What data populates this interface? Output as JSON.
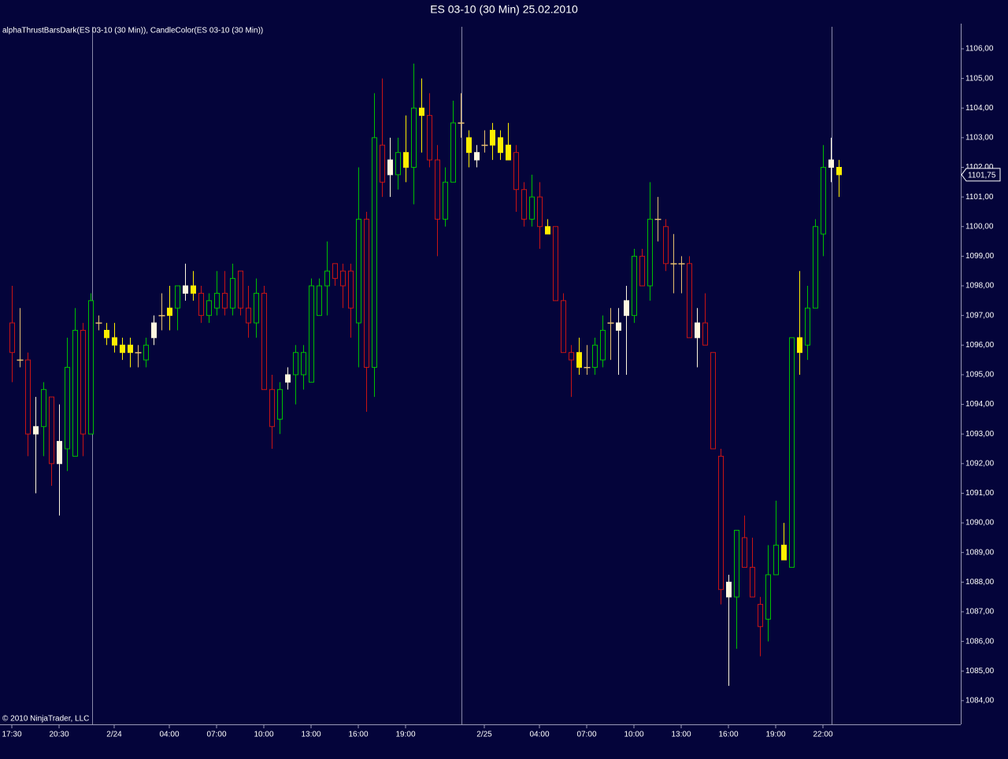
{
  "chart_data": {
    "type": "candlestick",
    "title": "ES 03-10 (30 Min)  25.02.2010",
    "indicator_label": "alphaThrustBarsDark(ES 03-10 (30 Min)), CandleColor(ES 03-10 (30 Min))",
    "copyright": "© 2010 NinjaTrader, LLC",
    "categories": [
      "17:30",
      null,
      null,
      null,
      null,
      null,
      "20:30",
      null,
      null,
      null,
      null,
      null,
      null,
      "2/24",
      null,
      null,
      null,
      null,
      null,
      null,
      "04:00",
      null,
      null,
      null,
      null,
      null,
      "07:00",
      null,
      null,
      null,
      null,
      null,
      "10:00",
      null,
      null,
      null,
      null,
      null,
      "13:00",
      null,
      null,
      null,
      null,
      null,
      "16:00",
      null,
      null,
      null,
      null,
      null,
      "19:00",
      null,
      null,
      null,
      null,
      null,
      null,
      null,
      null,
      null,
      "2/25",
      null,
      null,
      null,
      null,
      null,
      null,
      "04:00",
      null,
      null,
      null,
      null,
      null,
      "07:00",
      null,
      null,
      null,
      null,
      null,
      "10:00",
      null,
      null,
      null,
      null,
      null,
      "13:00",
      null,
      null,
      null,
      null,
      null,
      "16:00",
      null,
      null,
      null,
      null,
      null,
      "19:00",
      null,
      null,
      null,
      null,
      null,
      "22:00",
      null,
      null
    ],
    "open": [
      1096.75,
      1095.5,
      1095.5,
      1093,
      1093.25,
      1094.25,
      1092,
      1092.5,
      1092.25,
      1096.5,
      1093,
      1096.75,
      1096.5,
      1096.25,
      1096,
      1095.75,
      1095.75,
      1095.5,
      1096.25,
      1097,
      1097,
      1097.25,
      1098,
      1097.75,
      1097.75,
      1097,
      1097.25,
      1097.75,
      1097.25,
      1098.5,
      1097.25,
      1096.75,
      1097.75,
      1094.5,
      1093.5,
      1094.75,
      1095,
      1095,
      1094.75,
      1097,
      1098,
      1098.75,
      1098.5,
      1098.5,
      1096.75,
      1100.25,
      1095.25,
      1102.75,
      1101.75,
      1101.75,
      1102.5,
      1102,
      1104,
      1103.75,
      1102.25,
      1100.25,
      1101.5,
      1103.5,
      1103,
      1102.25,
      1102.75,
      1102.75,
      1103,
      1102.75,
      1102.5,
      1101.25,
      1100.25,
      1101,
      1100,
      1100,
      1097.5,
      1095.75,
      1095.75,
      1095.25,
      1095.25,
      1095.5,
      1096.75,
      1096.5,
      1097,
      1097,
      1099,
      1098,
      1100.25,
      1100,
      1098.75,
      1098.75,
      1098.75,
      1096.25,
      1096.75,
      1095.75,
      1092.25,
      1087.5,
      1087.5,
      1089.5,
      1088.5,
      1087.25,
      1086.75,
      1088.25,
      1089.25,
      1088.5,
      1096.25,
      1096,
      1097.25,
      1099.75,
      1102,
      1102
    ],
    "high": [
      1098,
      1097.25,
      1095.75,
      1094.25,
      1094.75,
      1094.25,
      1094,
      1096.25,
      1097.25,
      1096.75,
      1097.75,
      1097,
      1096.75,
      1096.75,
      1096.25,
      1096.25,
      1096,
      1096.25,
      1097,
      1097.75,
      1098,
      1098,
      1098.75,
      1098.5,
      1098,
      1097.75,
      1098.5,
      1098.5,
      1098.75,
      1098.5,
      1098,
      1098.25,
      1098,
      1095,
      1094.75,
      1095.25,
      1096,
      1096,
      1098.25,
      1098.25,
      1099.5,
      1098.75,
      1098.75,
      1098.75,
      1102,
      1100.5,
      1104.5,
      1105,
      1103,
      1103,
      1103.75,
      1105.5,
      1105,
      1104.5,
      1102.75,
      1102,
      1104.25,
      1104.5,
      1103.25,
      1102.75,
      1103.25,
      1103.5,
      1103.25,
      1103.5,
      1102.75,
      1101.5,
      1101.75,
      1101.5,
      1100.25,
      1100,
      1097.75,
      1096,
      1096.25,
      1096,
      1096.25,
      1097,
      1097.25,
      1097.25,
      1098,
      1099.25,
      1099.25,
      1101.5,
      1101,
      1100.25,
      1099.75,
      1099,
      1099,
      1097.25,
      1097.75,
      1095.75,
      1092.5,
      1088.25,
      1089.75,
      1090.25,
      1089.5,
      1087.5,
      1089.25,
      1090.75,
      1090,
      1096.25,
      1098.5,
      1098,
      1100.25,
      1102.75,
      1103,
      1102.25
    ],
    "low": [
      1094.75,
      1095.25,
      1092.25,
      1091,
      1092.25,
      1091.25,
      1090.25,
      1091.75,
      1092.25,
      1092.25,
      1093,
      1096.5,
      1096,
      1095.75,
      1095.5,
      1095.25,
      1095.25,
      1095.25,
      1096,
      1096.5,
      1096.5,
      1096.5,
      1097.5,
      1097.5,
      1096.75,
      1096.75,
      1097,
      1097,
      1097,
      1097,
      1096.25,
      1096.25,
      1094.5,
      1092.5,
      1093,
      1094.5,
      1094,
      1094.5,
      1094.75,
      1097,
      1097,
      1098,
      1097.25,
      1096.25,
      1095.25,
      1093.75,
      1094.25,
      1101,
      1101,
      1101.25,
      1101.5,
      1100.75,
      1102.5,
      1102,
      1099,
      1100,
      1101.5,
      1103,
      1102,
      1102,
      1102.5,
      1102.25,
      1102.25,
      1102.25,
      1100.5,
      1100,
      1100,
      1099.25,
      1099.75,
      1097.5,
      1095.75,
      1094.25,
      1095,
      1095,
      1095,
      1095.25,
      1095.5,
      1095,
      1095,
      1096.75,
      1098,
      1097.5,
      1099.5,
      1098.5,
      1097.75,
      1097.75,
      1096.25,
      1095.25,
      1096,
      1092.5,
      1087.25,
      1084.5,
      1085.75,
      1088.5,
      1087.5,
      1085.5,
      1086,
      1088.25,
      1088.75,
      1088.5,
      1095,
      1095.5,
      1097.25,
      1099,
      1101.5,
      1101
    ],
    "close": [
      1095.75,
      1095.5,
      1093,
      1093.25,
      1094.5,
      1092,
      1092.75,
      1095.25,
      1096.5,
      1093,
      1097.5,
      1096.75,
      1096.25,
      1096,
      1095.75,
      1096,
      1095.75,
      1096,
      1096.75,
      1097,
      1097.25,
      1098,
      1097.75,
      1098,
      1097,
      1097.5,
      1097.75,
      1097.25,
      1098.25,
      1097.25,
      1096.75,
      1097.75,
      1094.5,
      1093.25,
      1094.5,
      1095,
      1095.75,
      1095.75,
      1098,
      1098,
      1098.5,
      1098.25,
      1098,
      1097.25,
      1100.25,
      1095.25,
      1103,
      1101.5,
      1102.25,
      1102.5,
      1102,
      1104,
      1103.75,
      1102.25,
      1100.25,
      1101.5,
      1103.5,
      1103.5,
      1102.5,
      1102.5,
      1102.75,
      1103.25,
      1102.5,
      1102.25,
      1101.25,
      1100.25,
      1101,
      1100,
      1099.75,
      1097.5,
      1095.75,
      1095.5,
      1095.25,
      1095.25,
      1096,
      1096.5,
      1096.75,
      1096.75,
      1097.5,
      1099,
      1098,
      1100.25,
      1100.25,
      1098.75,
      1098.75,
      1098.75,
      1096.25,
      1096.75,
      1096,
      1092.5,
      1087.75,
      1088,
      1089.75,
      1088.5,
      1087.5,
      1086.5,
      1088.25,
      1089.25,
      1088.75,
      1096.25,
      1095.75,
      1097.25,
      1100,
      1102,
      1102.25,
      1101.75
    ],
    "colors": [
      "#c81414",
      "#e8c070",
      "#c81414",
      "#fff8e0",
      "#00c000",
      "#c81414",
      "#fff8e0",
      "#00c000",
      "#00c000",
      "#c81414",
      "#00c000",
      "#e8c070",
      "#ffee00",
      "#ffee00",
      "#ffee00",
      "#ffee00",
      "#e8c070",
      "#00c000",
      "#fff8e0",
      "#e8c070",
      "#ffee00",
      "#00c000",
      "#fff8e0",
      "#ffee00",
      "#c81414",
      "#00c000",
      "#00c000",
      "#c81414",
      "#00c000",
      "#c81414",
      "#c81414",
      "#00c000",
      "#c81414",
      "#c81414",
      "#00c000",
      "#fff8e0",
      "#00c000",
      "#00c000",
      "#00c000",
      "#00c000",
      "#00c000",
      "#c81414",
      "#c81414",
      "#c81414",
      "#00c000",
      "#c81414",
      "#00c000",
      "#c81414",
      "#fff8e0",
      "#00c000",
      "#ffee00",
      "#00c000",
      "#ffee00",
      "#c81414",
      "#c81414",
      "#00c000",
      "#00c000",
      "#e8c070",
      "#ffee00",
      "#fff8e0",
      "#e8c070",
      "#ffee00",
      "#ffee00",
      "#ffee00",
      "#c81414",
      "#c81414",
      "#00c000",
      "#c81414",
      "#ffee00",
      "#c81414",
      "#c81414",
      "#c81414",
      "#ffee00",
      "#e8c070",
      "#00c000",
      "#00c000",
      "#e8c070",
      "#fff8e0",
      "#fff8e0",
      "#00c000",
      "#c81414",
      "#00c000",
      "#e8c070",
      "#c81414",
      "#e8c070",
      "#e8c070",
      "#c81414",
      "#fff8e0",
      "#c81414",
      "#c81414",
      "#c81414",
      "#fff8e0",
      "#00c000",
      "#c81414",
      "#c81414",
      "#c81414",
      "#00c000",
      "#00c000",
      "#ffee00",
      "#00c000",
      "#ffee00",
      "#00c000",
      "#00c000",
      "#00c000",
      "#fff8e0",
      "#ffee00"
    ],
    "hollow_colors": [
      "#00c000",
      "#c81414"
    ],
    "ylim": [
      1083.2,
      1106.85
    ],
    "yticks": [
      {
        "value": 1084,
        "label": "1084,00"
      },
      {
        "value": 1085,
        "label": "1085,00"
      },
      {
        "value": 1086,
        "label": "1086,00"
      },
      {
        "value": 1087,
        "label": "1087,00"
      },
      {
        "value": 1088,
        "label": "1088,00"
      },
      {
        "value": 1089,
        "label": "1089,00"
      },
      {
        "value": 1090,
        "label": "1090,00"
      },
      {
        "value": 1091,
        "label": "1091,00"
      },
      {
        "value": 1092,
        "label": "1092,00"
      },
      {
        "value": 1093,
        "label": "1093,00"
      },
      {
        "value": 1094,
        "label": "1094,00"
      },
      {
        "value": 1095,
        "label": "1095,00"
      },
      {
        "value": 1096,
        "label": "1096,00"
      },
      {
        "value": 1097,
        "label": "1097,00"
      },
      {
        "value": 1098,
        "label": "1098,00"
      },
      {
        "value": 1099,
        "label": "1099,00"
      },
      {
        "value": 1100,
        "label": "1100,00"
      },
      {
        "value": 1101,
        "label": "1101,00"
      },
      {
        "value": 1102,
        "label": "1102,00"
      },
      {
        "value": 1103,
        "label": "1103,00"
      },
      {
        "value": 1104,
        "label": "1104,00"
      },
      {
        "value": 1105,
        "label": "1105,00"
      },
      {
        "value": 1106,
        "label": "1106,00"
      }
    ],
    "last_price": {
      "value": 1101.75,
      "label": "1101,75"
    }
  }
}
